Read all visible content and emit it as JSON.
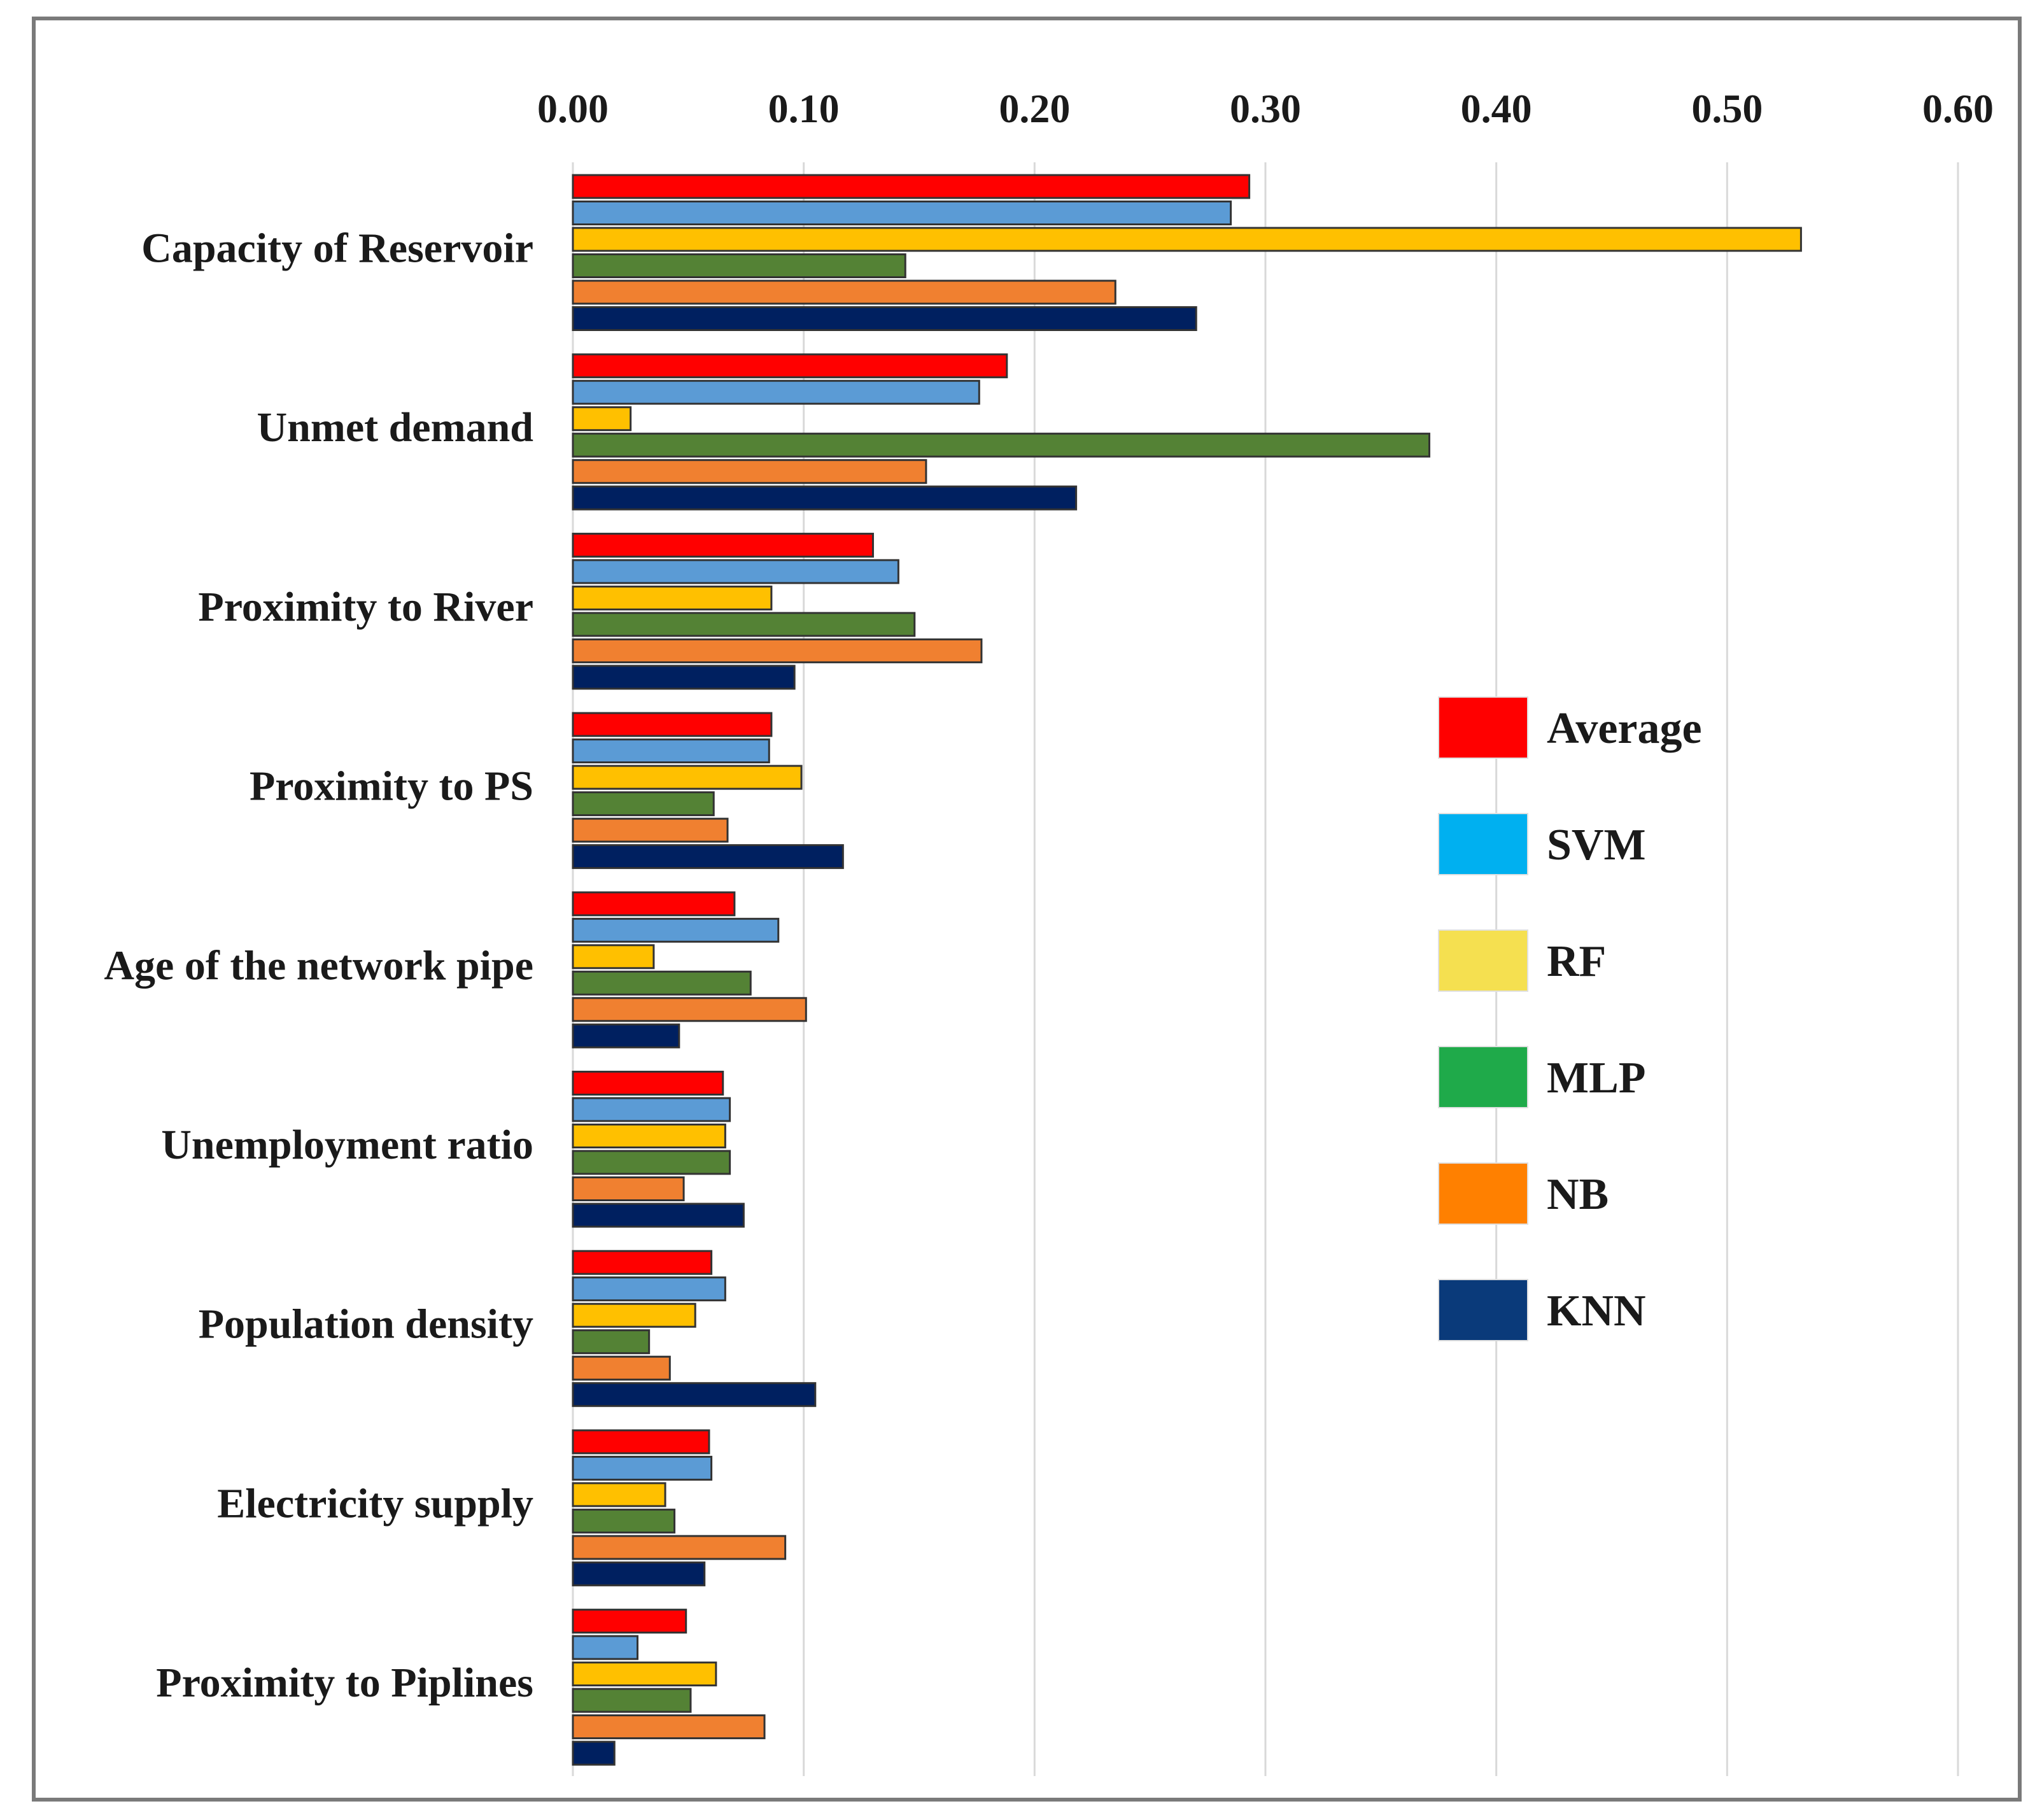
{
  "chart_data": {
    "type": "bar",
    "orientation": "horizontal",
    "title": "",
    "xlabel": "",
    "ylabel": "",
    "xlim": [
      0,
      0.6
    ],
    "x_axis_position": "top",
    "grid": true,
    "legend_position": "right",
    "ticks": [
      "0.00",
      "0.10",
      "0.20",
      "0.30",
      "0.40",
      "0.50",
      "0.60"
    ],
    "tick_values": [
      0,
      0.1,
      0.2,
      0.3,
      0.4,
      0.5,
      0.6
    ],
    "categories": [
      "Capacity of Reservoir",
      "Unmet demand",
      "Proximity to  River",
      "Proximity to PS",
      "Age of  the network pipe",
      "Unemployment ratio",
      "Population density",
      "Electricity supply",
      "Proximity to Piplines"
    ],
    "series": [
      {
        "name": "Average",
        "color": "#ff0000",
        "legend_color": "#ff0000",
        "values": [
          0.293,
          0.188,
          0.13,
          0.086,
          0.07,
          0.065,
          0.06,
          0.059,
          0.049
        ]
      },
      {
        "name": "SVM",
        "color": "#5b9bd5",
        "legend_color": "#00b0f0",
        "values": [
          0.285,
          0.176,
          0.141,
          0.085,
          0.089,
          0.068,
          0.066,
          0.06,
          0.028
        ]
      },
      {
        "name": "RF",
        "color": "#ffc000",
        "legend_color": "#f5e050",
        "values": [
          0.532,
          0.025,
          0.086,
          0.099,
          0.035,
          0.066,
          0.053,
          0.04,
          0.062
        ]
      },
      {
        "name": "MLP",
        "color": "#548235",
        "legend_color": "#1faa4a",
        "values": [
          0.144,
          0.371,
          0.148,
          0.061,
          0.077,
          0.068,
          0.033,
          0.044,
          0.051
        ]
      },
      {
        "name": "NB",
        "color": "#f08030",
        "legend_color": "#ff8000",
        "values": [
          0.235,
          0.153,
          0.177,
          0.067,
          0.101,
          0.048,
          0.042,
          0.092,
          0.083
        ]
      },
      {
        "name": "KNN",
        "color": "#002060",
        "legend_color": "#0a3a7a",
        "values": [
          0.27,
          0.218,
          0.096,
          0.117,
          0.046,
          0.074,
          0.105,
          0.057,
          0.018
        ]
      }
    ]
  }
}
